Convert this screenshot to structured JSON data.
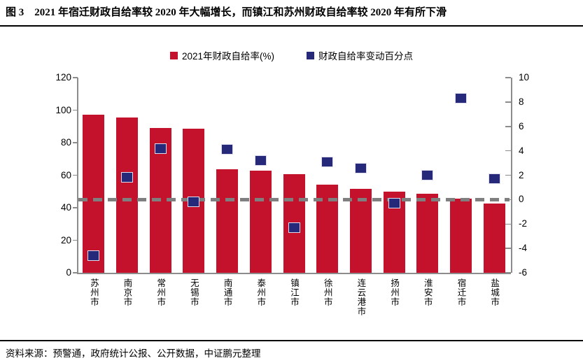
{
  "header": {
    "title": "图 3　2021 年宿迁财政自给率较 2020 年大幅增长，而镇江和苏州财政自给率较 2020 年有所下滑"
  },
  "footer": {
    "source": "资料来源：预警通，政府统计公报、公开数据，中证鹏元整理"
  },
  "colors": {
    "bar": "#C4122D",
    "marker": "#26287A",
    "dashed_line": "#7F7F7F",
    "axis": "#8C8C8C",
    "text": "#000000"
  },
  "chart_data": {
    "type": "bar",
    "title": "",
    "categories": [
      "苏州市",
      "南京市",
      "常州市",
      "无锡市",
      "南通市",
      "泰州市",
      "镇江市",
      "徐州市",
      "连云港市",
      "扬州市",
      "淮安市",
      "宿迁市",
      "盐城市"
    ],
    "series": [
      {
        "name": "2021年财政自给率(%)",
        "type": "bar",
        "axis": "left",
        "color": "#C4122D",
        "values": [
          97,
          95.5,
          89,
          88.5,
          63.5,
          63,
          60.5,
          54,
          51.5,
          50,
          48.5,
          45.5,
          42.5
        ]
      },
      {
        "name": "财政自给率变动百分点",
        "type": "scatter",
        "axis": "right",
        "color": "#26287A",
        "values": [
          -4.6,
          1.8,
          4.2,
          -0.2,
          4.1,
          3.2,
          -2.3,
          3.1,
          2.6,
          -0.3,
          2.0,
          8.3,
          1.7
        ]
      }
    ],
    "left_axis": {
      "min": 0,
      "max": 120,
      "step": 20,
      "ticks": [
        0,
        20,
        40,
        60,
        80,
        100,
        120
      ]
    },
    "right_axis": {
      "min": -6,
      "max": 10,
      "step": 2,
      "ticks": [
        -6,
        -4,
        -2,
        0,
        2,
        4,
        6,
        8,
        10
      ]
    },
    "zero_line": {
      "axis": "right",
      "value": 0,
      "style": "dashed",
      "color": "#7F7F7F"
    },
    "grid": false,
    "legend_position": "top"
  }
}
